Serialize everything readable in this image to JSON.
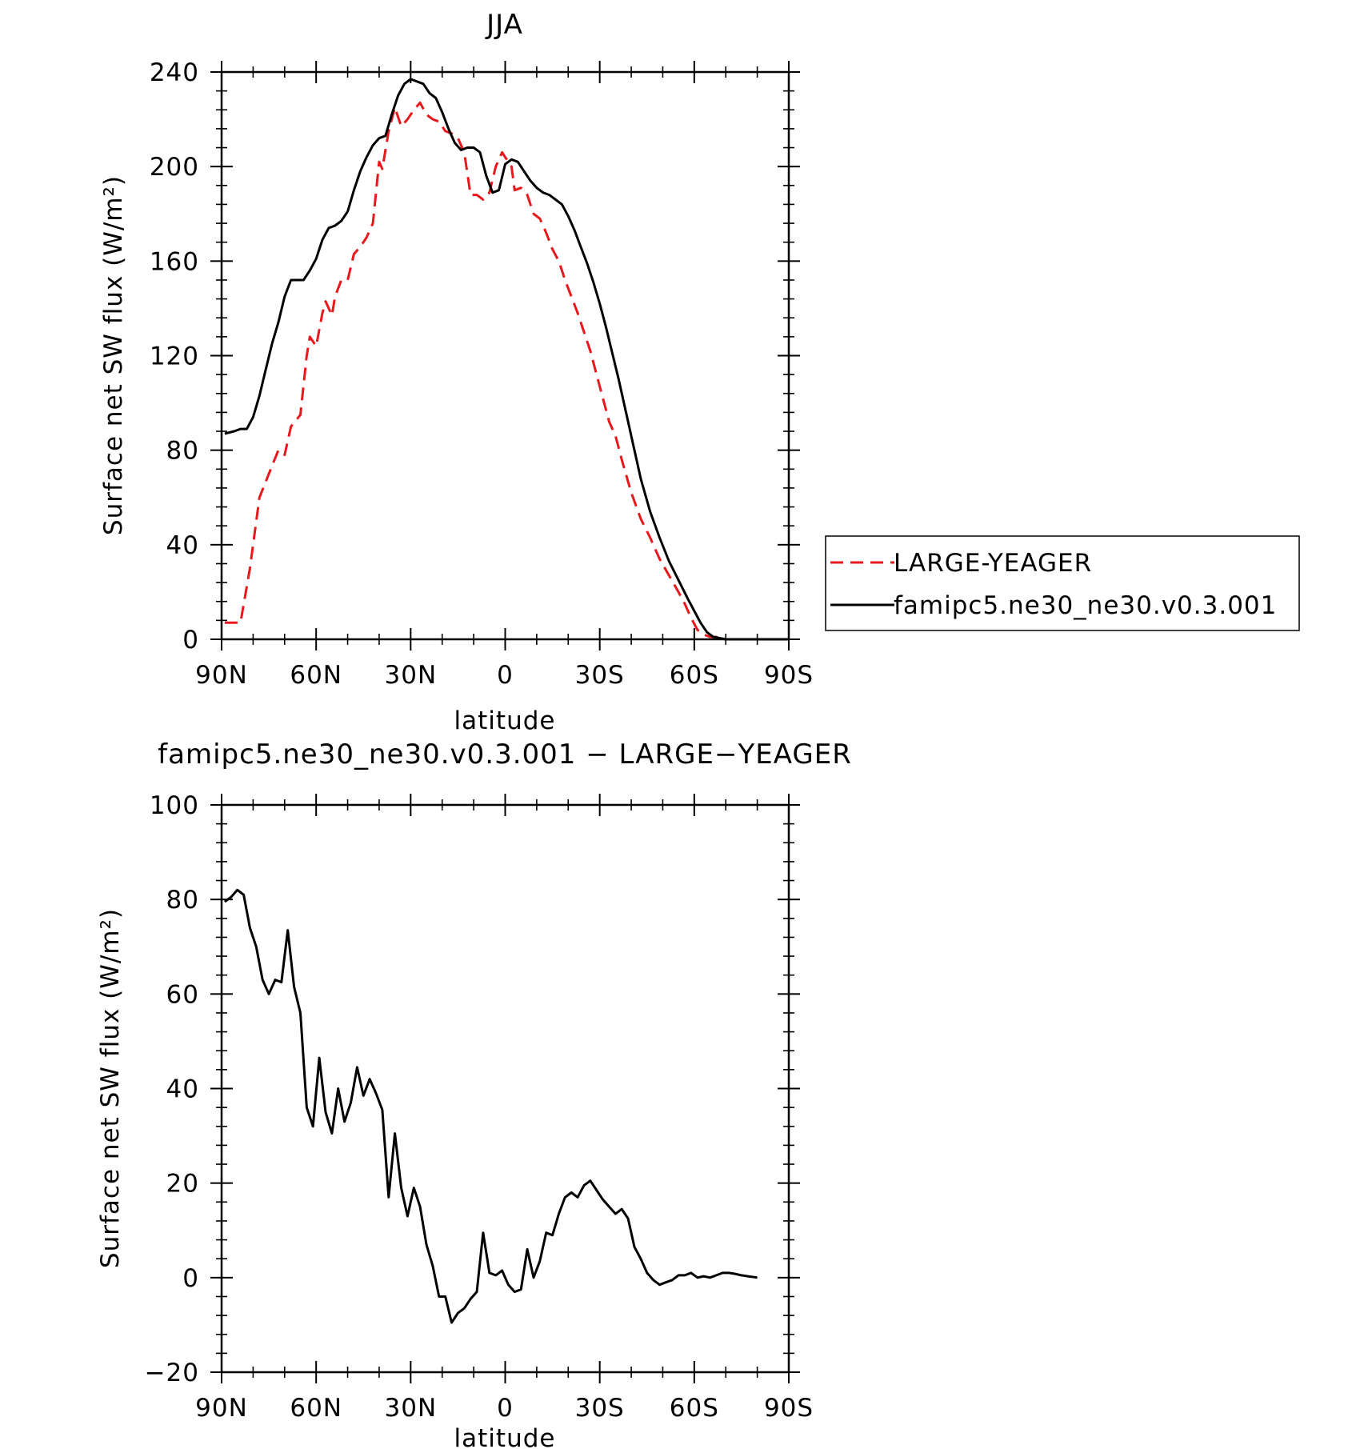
{
  "chart_data": [
    {
      "type": "line",
      "title": "JJA",
      "xlabel": "latitude",
      "ylabel": "Surface net SW flux (W/m²)",
      "xlim": [
        90,
        -90
      ],
      "ylim": [
        0,
        240
      ],
      "x_ticks": [
        90,
        60,
        30,
        0,
        -30,
        -60,
        -90
      ],
      "x_tick_labels": [
        "90N",
        "60N",
        "30N",
        "0",
        "30S",
        "60S",
        "90S"
      ],
      "y_ticks": [
        0,
        40,
        80,
        120,
        160,
        200,
        240
      ],
      "y_tick_labels": [
        "0",
        "40",
        "80",
        "120",
        "160",
        "200",
        "240"
      ],
      "legend": {
        "placement": "right"
      },
      "series": [
        {
          "name": "LARGE-YEAGER",
          "color": "#e8181c",
          "dash": "dashed",
          "x": [
            89,
            84,
            81,
            78,
            75,
            72,
            70,
            68,
            65,
            63,
            62,
            60,
            58,
            57,
            55,
            54,
            52,
            50,
            48,
            46,
            44,
            42,
            40,
            39,
            37,
            35,
            33,
            31,
            29,
            27,
            25,
            23,
            21,
            19,
            17,
            15,
            13,
            11,
            9,
            7,
            5,
            3,
            1,
            0,
            -2,
            -3,
            -5,
            -7,
            -9,
            -11,
            -13,
            -15,
            -17,
            -19,
            -21,
            -23,
            -25,
            -27,
            -29,
            -31,
            -33,
            -35,
            -37,
            -40,
            -43,
            -46,
            -49,
            -52,
            -55,
            -57,
            -59,
            -61,
            -63,
            -65,
            -67,
            -70,
            -75,
            -80,
            -85,
            -90
          ],
          "y": [
            7,
            7,
            30,
            60,
            70,
            80,
            78,
            90,
            95,
            120,
            128,
            124,
            138,
            143,
            137,
            145,
            152,
            152,
            163,
            166,
            170,
            176,
            202,
            199,
            215,
            225,
            217,
            220,
            224,
            227,
            222,
            220,
            219,
            215,
            214,
            212,
            206,
            188,
            188,
            186,
            189,
            200,
            206,
            204,
            200,
            190,
            191,
            188,
            180,
            178,
            172,
            165,
            160,
            152,
            145,
            138,
            130,
            122,
            112,
            102,
            92,
            86,
            76,
            62,
            51,
            43,
            34,
            27,
            20,
            15,
            9,
            4,
            2,
            1,
            1,
            0,
            0,
            0,
            0,
            0
          ]
        },
        {
          "name": "famipc5.ne30_ne30.v0.3.001",
          "color": "#000000",
          "dash": "solid",
          "x": [
            89,
            86,
            84,
            82,
            80,
            78,
            76,
            74,
            72,
            70,
            68,
            66,
            64,
            62,
            60,
            58,
            56,
            54,
            52,
            50,
            48,
            46,
            44,
            42,
            40,
            38,
            36,
            34,
            32,
            30,
            28,
            26,
            24,
            22,
            20,
            18,
            16,
            14,
            12,
            10,
            8,
            6,
            4,
            2,
            0,
            -2,
            -4,
            -6,
            -8,
            -10,
            -12,
            -14,
            -16,
            -18,
            -20,
            -22,
            -24,
            -26,
            -28,
            -30,
            -32,
            -34,
            -36,
            -38,
            -40,
            -43,
            -46,
            -49,
            -52,
            -55,
            -58,
            -60,
            -62,
            -64,
            -66,
            -68,
            -70,
            -75,
            -80,
            -85,
            -90
          ],
          "y": [
            87,
            88,
            89,
            89,
            94,
            103,
            114,
            125,
            134,
            145,
            152,
            152,
            152,
            156,
            161,
            169,
            174,
            175,
            177,
            181,
            190,
            198,
            204,
            209,
            212,
            213,
            222,
            230,
            235,
            237,
            236,
            235,
            231,
            229,
            223,
            216,
            210,
            207,
            208,
            208,
            206,
            196,
            189,
            190,
            201,
            203,
            202,
            198,
            194,
            191,
            189,
            188,
            186,
            184,
            179,
            173,
            166,
            159,
            151,
            142,
            132,
            121,
            110,
            98,
            86,
            68,
            54,
            43,
            33,
            25,
            17,
            12,
            7,
            3,
            1,
            0.5,
            0,
            0,
            0,
            0,
            0
          ]
        }
      ]
    },
    {
      "type": "line",
      "title": "famipc5.ne30_ne30.v0.3.001 − LARGE−YEAGER",
      "xlabel": "latitude",
      "ylabel": "Surface net SW flux (W/m²)",
      "xlim": [
        90,
        -90
      ],
      "ylim": [
        -20,
        100
      ],
      "x_ticks": [
        90,
        60,
        30,
        0,
        -30,
        -60,
        -90
      ],
      "x_tick_labels": [
        "90N",
        "60N",
        "30N",
        "0",
        "30S",
        "60S",
        "90S"
      ],
      "y_ticks": [
        -20,
        0,
        20,
        40,
        60,
        80,
        100
      ],
      "y_tick_labels": [
        "−20",
        "0",
        "20",
        "40",
        "60",
        "80",
        "100"
      ],
      "series": [
        {
          "name": "",
          "color": "#000000",
          "dash": "solid",
          "x": [
            89,
            87,
            85,
            83,
            81,
            79,
            77,
            75,
            73,
            71,
            69,
            67,
            65,
            63,
            61,
            59,
            57,
            55,
            53,
            51,
            49,
            47,
            45,
            43,
            41,
            39,
            37,
            35,
            33,
            31,
            29,
            27,
            25,
            23,
            21,
            19,
            17,
            15,
            13,
            11,
            9,
            7,
            5,
            3,
            1,
            -1,
            -3,
            -5,
            -7,
            -9,
            -11,
            -13,
            -15,
            -17,
            -19,
            -21,
            -23,
            -25,
            -27,
            -29,
            -31,
            -33,
            -35,
            -37,
            -39,
            -41,
            -43,
            -45,
            -47,
            -49,
            -51,
            -53,
            -55,
            -57,
            -59,
            -61,
            -63,
            -65,
            -67,
            -69,
            -71,
            -73,
            -75,
            -77,
            -79,
            -80
          ],
          "y": [
            79.5,
            80.5,
            82,
            81,
            74,
            70,
            63,
            60,
            63,
            62.5,
            73.5,
            61.5,
            56,
            36,
            32,
            46.5,
            35,
            30.5,
            40,
            33,
            37,
            44.5,
            38.5,
            42,
            39,
            35.5,
            17,
            30.5,
            19,
            13,
            19,
            15,
            7,
            2.5,
            -4,
            -4,
            -9.5,
            -7.5,
            -6.5,
            -4.5,
            -3,
            9.5,
            1,
            0.5,
            1.5,
            -1.5,
            -3,
            -2.5,
            6,
            0,
            3.5,
            9.5,
            9,
            13.5,
            17,
            18,
            17,
            19.5,
            20.5,
            18.5,
            16.5,
            15,
            13.5,
            14.5,
            12.5,
            6.5,
            4,
            1,
            -0.5,
            -1.5,
            -1,
            -0.5,
            0.5,
            0.5,
            1,
            0,
            0.3,
            0,
            0.5,
            1,
            1,
            0.8,
            0.5,
            0.3,
            0.1,
            0
          ]
        }
      ]
    }
  ]
}
